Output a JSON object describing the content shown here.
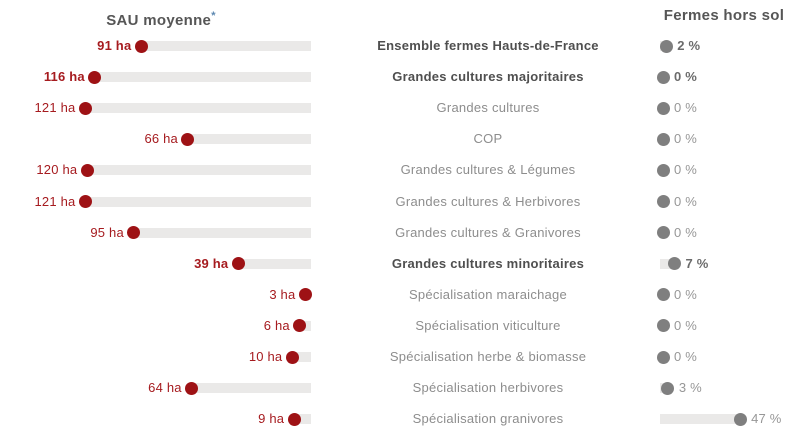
{
  "headers": {
    "left_title": "SAU moyenne",
    "left_footnote_marker": "*",
    "right_title": "Fermes hors sol"
  },
  "colors": {
    "accent_red": "#9e1215",
    "red_text": "#a61b1f",
    "gray_dot": "#7f7f7f",
    "bar": "#eae9e8",
    "text_bold": "#4f4f4f",
    "text_regular": "#8d8d8d",
    "pct_bold": "#6b6b6b",
    "pct_regular": "#979797",
    "header_text": "#565656",
    "asterisk": "#5b87b0"
  },
  "chart_data": {
    "type": "bar",
    "subtype": "dual-lollipop",
    "left_series_name": "SAU moyenne (ha)",
    "right_series_name": "Fermes hors sol (%)",
    "left_axis_direction": "value increases leftward from right baseline",
    "right_axis_direction": "value increases rightward from left baseline",
    "rows": [
      {
        "label": "Ensemble fermes Hauts-de-France",
        "sau_ha": 91,
        "sau_label": "91 ha",
        "hors_sol_pct": 2,
        "pct_label": "2 %",
        "emphasis": true
      },
      {
        "label": "Grandes cultures majoritaires",
        "sau_ha": 116,
        "sau_label": "116 ha",
        "hors_sol_pct": 0,
        "pct_label": "0 %",
        "emphasis": true
      },
      {
        "label": "Grandes cultures",
        "sau_ha": 121,
        "sau_label": "121 ha",
        "hors_sol_pct": 0,
        "pct_label": "0 %",
        "emphasis": false
      },
      {
        "label": "COP",
        "sau_ha": 66,
        "sau_label": "66 ha",
        "hors_sol_pct": 0,
        "pct_label": "0 %",
        "emphasis": false
      },
      {
        "label": "Grandes cultures & Légumes",
        "sau_ha": 120,
        "sau_label": "120 ha",
        "hors_sol_pct": 0,
        "pct_label": "0 %",
        "emphasis": false
      },
      {
        "label": "Grandes cultures & Herbivores",
        "sau_ha": 121,
        "sau_label": "121 ha",
        "hors_sol_pct": 0,
        "pct_label": "0 %",
        "emphasis": false
      },
      {
        "label": "Grandes cultures & Granivores",
        "sau_ha": 95,
        "sau_label": "95 ha",
        "hors_sol_pct": 0,
        "pct_label": "0 %",
        "emphasis": false
      },
      {
        "label": "Grandes cultures minoritaires",
        "sau_ha": 39,
        "sau_label": "39 ha",
        "hors_sol_pct": 7,
        "pct_label": "7 %",
        "emphasis": true
      },
      {
        "label": "Spécialisation maraichage",
        "sau_ha": 3,
        "sau_label": "3 ha",
        "hors_sol_pct": 0,
        "pct_label": "0 %",
        "emphasis": false
      },
      {
        "label": "Spécialisation viticulture",
        "sau_ha": 6,
        "sau_label": "6 ha",
        "hors_sol_pct": 0,
        "pct_label": "0 %",
        "emphasis": false
      },
      {
        "label": "Spécialisation herbe & biomasse",
        "sau_ha": 10,
        "sau_label": "10 ha",
        "hors_sol_pct": 0,
        "pct_label": "0 %",
        "emphasis": false
      },
      {
        "label": "Spécialisation herbivores",
        "sau_ha": 64,
        "sau_label": "64 ha",
        "hors_sol_pct": 3,
        "pct_label": "3 %",
        "emphasis": false
      },
      {
        "label": "Spécialisation granivores",
        "sau_ha": 9,
        "sau_label": "9 ha",
        "hors_sol_pct": 47,
        "pct_label": "47 %",
        "emphasis": false
      }
    ]
  }
}
